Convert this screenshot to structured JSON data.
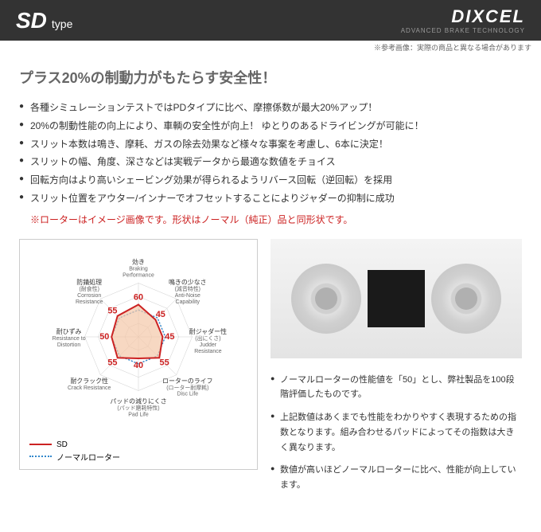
{
  "header": {
    "sd": "SD",
    "type": "type",
    "brand": "DIXCEL",
    "tagline": "ADVANCED BRAKE TECHNOLOGY",
    "note": "※参考画像：実際の商品と異なる場合があります"
  },
  "headline": "プラス20%の制動力がもたらす安全性！",
  "bullets": [
    "各種シミュレーションテストではPDタイプに比べ、摩擦係数が最大20%アップ！",
    "20%の制動性能の向上により、車輌の安全性が向上！ ゆとりのあるドライビングが可能に！",
    "スリット本数は鳴き、摩耗、ガスの除去効果など様々な事案を考慮し、6本に決定！",
    "スリットの幅、角度、深さなどは実戦データから最適な数値をチョイス",
    "回転方向はより高いシェービング効果が得られるようリバース回転（逆回転）を採用",
    "スリット位置をアウター/インナーでオフセットすることによりジャダーの抑制に成功"
  ],
  "warning": "※ローターはイメージ画像です。形状はノーマル（純正）品と同形状です。",
  "radar": {
    "axes": [
      {
        "label": "効き",
        "sub": "Braking\nPerformance",
        "value": 60
      },
      {
        "label": "鳴きの少なさ",
        "sub": "(減音特性)\nAnti-Noise\nCapability",
        "value": 45
      },
      {
        "label": "耐ジャダー性",
        "sub": "(出にくさ)\nJudder\nResistance",
        "value": 45
      },
      {
        "label": "ローターのライフ",
        "sub": "(ローター耐摩耗)\nDisc Life",
        "value": 55
      },
      {
        "label": "パッドの減りにくさ",
        "sub": "(パッド磨耗特性)\nPad Life",
        "value": 40
      },
      {
        "label": "耐クラック性",
        "sub": "Crack Resistance",
        "value": 55
      },
      {
        "label": "耐ひずみ",
        "sub": "Resistance to\nDistortion",
        "value": 50
      },
      {
        "label": "防錆処理",
        "sub": "(耐食性)\nCorrosion\nResistance",
        "value": 55
      }
    ],
    "sd_color": "#cc2222",
    "sd_fill": "#f4c7a8",
    "normal_color": "#3388cc",
    "grid_color": "#cccccc",
    "legend_sd": "SD",
    "legend_normal": "ノーマルローター"
  },
  "lower_bullets": [
    "ノーマルローターの性能値を「50」とし、弊社製品を100段階評価したものです。",
    "上記数値はあくまでも性能をわかりやすく表現するための指数となります。組み合わせるパッドによってその指数は大きく異なります。",
    "数値が高いほどノーマルローターに比べ、性能が向上しています。"
  ]
}
